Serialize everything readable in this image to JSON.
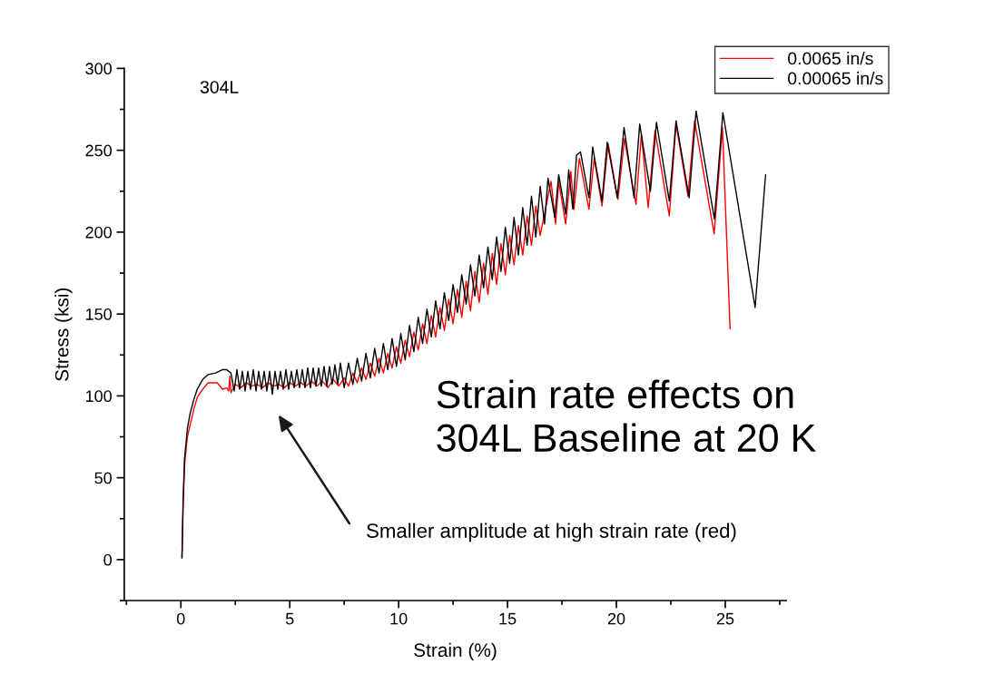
{
  "chart_data": {
    "type": "line",
    "xlabel": "Strain (%)",
    "ylabel": "Stress (ksi)",
    "xlim": [
      -2.6,
      27.8
    ],
    "ylim": [
      -25,
      300
    ],
    "xticks": [
      {
        "value": -2.5,
        "label": null
      },
      0,
      {
        "value": 2.5,
        "label": null
      },
      5,
      {
        "value": 7.5,
        "label": null
      },
      10,
      {
        "value": 12.5,
        "label": null
      },
      15,
      {
        "value": 17.5,
        "label": null
      },
      20,
      {
        "value": 22.5,
        "label": null
      },
      25,
      {
        "value": 27.5,
        "label": null
      }
    ],
    "yticks": [
      {
        "value": -25,
        "label": null
      },
      0,
      {
        "value": 25,
        "label": null
      },
      50,
      {
        "value": 75,
        "label": null
      },
      100,
      {
        "value": 125,
        "label": null
      },
      150,
      {
        "value": 175,
        "label": null
      },
      200,
      {
        "value": 225,
        "label": null
      },
      250,
      {
        "value": 275,
        "label": null
      },
      300
    ],
    "grid": false,
    "legend": "top right",
    "marker": "none",
    "line_style": "solid",
    "series": [
      {
        "name": "0.0065 in/s",
        "color": "#ff0000",
        "x": [
          0.05,
          0.1,
          0.17,
          0.3,
          0.42,
          0.6,
          0.75,
          1.0,
          1.25,
          1.67,
          1.92,
          2.1,
          2.2,
          2.25,
          2.3,
          2.5,
          2.75,
          3.0,
          3.25,
          3.5,
          3.75,
          4.0,
          4.25,
          4.5,
          4.75,
          5.0,
          5.25,
          5.5,
          5.75,
          6.0,
          6.25,
          6.5,
          6.75,
          7.0,
          7.25,
          7.5,
          7.7,
          7.9,
          8.1,
          8.3,
          8.5,
          8.7,
          8.9,
          9.1,
          9.3,
          9.5,
          9.7,
          9.9,
          10.1,
          10.3,
          10.5,
          10.7,
          10.9,
          11.1,
          11.3,
          11.5,
          11.7,
          11.9,
          12.1,
          12.3,
          12.5,
          12.7,
          12.9,
          13.1,
          13.3,
          13.5,
          13.7,
          13.9,
          14.1,
          14.3,
          14.5,
          14.7,
          14.9,
          15.1,
          15.3,
          15.5,
          15.7,
          15.9,
          16.1,
          16.3,
          16.5,
          17.0,
          17.21,
          17.35,
          17.67,
          17.91,
          18.05,
          18.3,
          18.74,
          18.98,
          19.34,
          19.62,
          20.07,
          20.37,
          20.9,
          21.15,
          21.46,
          21.77,
          22.43,
          22.74,
          23.29,
          23.59,
          24.49,
          24.87,
          25.22
        ],
        "values": [
          1,
          30,
          58,
          75,
          82,
          92,
          99,
          104,
          108,
          108,
          104,
          105,
          103,
          112,
          102,
          107,
          105,
          108,
          106,
          107,
          105,
          108,
          106,
          107,
          105,
          108,
          106,
          108,
          106,
          109,
          106,
          109,
          105,
          110,
          106,
          111,
          106,
          114,
          108,
          117,
          110,
          120,
          112,
          123,
          114,
          126,
          117,
          130,
          120,
          134,
          124,
          139,
          128,
          144,
          132,
          149,
          136,
          154,
          140,
          159,
          144,
          165,
          148,
          170,
          152,
          176,
          157,
          181,
          162,
          187,
          168,
          193,
          174,
          198,
          180,
          204,
          186,
          210,
          192,
          216,
          198,
          231,
          205,
          231,
          205,
          237,
          214,
          245,
          214,
          245,
          216,
          254,
          220,
          257,
          217,
          260,
          215,
          262,
          210,
          266,
          222,
          268,
          199,
          264,
          141
        ]
      },
      {
        "name": "0.00065 in/s",
        "color": "#000000",
        "x": [
          0.05,
          0.1,
          0.17,
          0.3,
          0.42,
          0.6,
          0.75,
          1.0,
          1.25,
          1.6,
          1.9,
          2.1,
          2.3,
          2.45,
          2.575,
          2.7,
          2.825,
          2.95,
          3.075,
          3.2,
          3.325,
          3.45,
          3.575,
          3.7,
          3.825,
          3.95,
          4.075,
          4.2,
          4.325,
          4.45,
          4.575,
          4.7,
          4.825,
          4.95,
          5.075,
          5.2,
          5.325,
          5.45,
          5.575,
          5.7,
          5.825,
          5.95,
          6.075,
          6.2,
          6.325,
          6.45,
          6.575,
          6.7,
          6.825,
          6.95,
          7.075,
          7.2,
          7.325,
          7.5,
          7.7,
          7.9,
          8.1,
          8.3,
          8.5,
          8.7,
          8.9,
          9.1,
          9.3,
          9.5,
          9.7,
          9.9,
          10.1,
          10.3,
          10.5,
          10.7,
          10.9,
          11.1,
          11.3,
          11.5,
          11.7,
          11.9,
          12.1,
          12.3,
          12.5,
          12.7,
          12.9,
          13.1,
          13.3,
          13.5,
          13.7,
          13.9,
          14.1,
          14.3,
          14.5,
          14.7,
          14.9,
          15.1,
          15.3,
          15.5,
          15.7,
          15.9,
          16.1,
          16.3,
          16.5,
          16.7,
          16.86,
          17.17,
          17.35,
          17.67,
          17.81,
          18.0,
          18.17,
          18.35,
          18.74,
          18.91,
          19.34,
          19.58,
          20.04,
          20.35,
          20.81,
          21.07,
          21.56,
          21.84,
          22.43,
          22.74,
          23.34,
          23.66,
          24.5,
          24.89,
          26.37,
          26.85
        ],
        "values": [
          1,
          35,
          62,
          80,
          89,
          98,
          104,
          110,
          113,
          114,
          116,
          116,
          114,
          103,
          116,
          104,
          115,
          103,
          115,
          104,
          116,
          103,
          115,
          104,
          115,
          103,
          115,
          101,
          115,
          104,
          115,
          104,
          116,
          104,
          115,
          105,
          116,
          105,
          116,
          105,
          117,
          105,
          117,
          106,
          117,
          106,
          118,
          106,
          118,
          107,
          119,
          107,
          120,
          105,
          120,
          107,
          123,
          109,
          126,
          111,
          129,
          114,
          132,
          116,
          135,
          118,
          138,
          122,
          143,
          127,
          148,
          132,
          153,
          136,
          158,
          141,
          163,
          146,
          168,
          151,
          174,
          156,
          180,
          161,
          186,
          166,
          191,
          171,
          197,
          176,
          203,
          181,
          209,
          186,
          215,
          192,
          222,
          197,
          228,
          205,
          233,
          209,
          235,
          211,
          238,
          214,
          247,
          249,
          221,
          252,
          219,
          255,
          221,
          264,
          221,
          266,
          225,
          267,
          219,
          268,
          221,
          274,
          208,
          273,
          154,
          235
        ]
      }
    ],
    "annotations": [
      "304L",
      "Smaller amplitude at high strain rate (red)",
      "Strain rate effects on\n304L Baseline at 20 K"
    ]
  }
}
